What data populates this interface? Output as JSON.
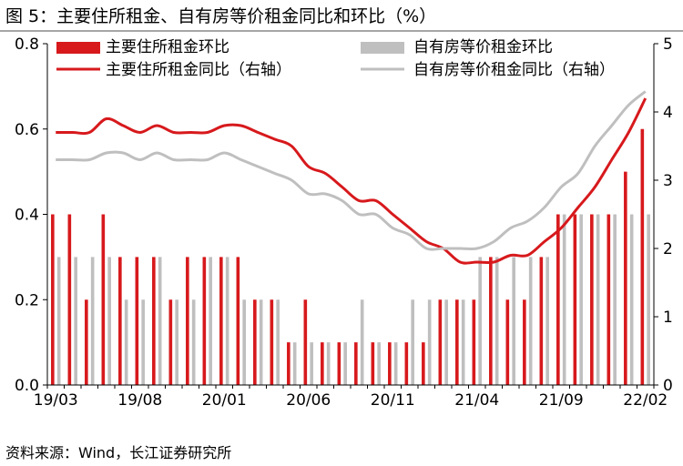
{
  "figure": {
    "title": "图 5：主要住所租金、自有房等价租金同比和环比（%）",
    "source": "资料来源：Wind，长江证券研究所"
  },
  "chart_data": {
    "type": "bar+line",
    "legend_position": "top",
    "grid": false,
    "x_tick_labels": [
      "19/03",
      "19/08",
      "20/01",
      "20/06",
      "20/11",
      "21/04",
      "21/09",
      "22/02"
    ],
    "x_months": [
      "2019-03",
      "2019-04",
      "2019-05",
      "2019-06",
      "2019-07",
      "2019-08",
      "2019-09",
      "2019-10",
      "2019-11",
      "2019-12",
      "2020-01",
      "2020-02",
      "2020-03",
      "2020-04",
      "2020-05",
      "2020-06",
      "2020-07",
      "2020-08",
      "2020-09",
      "2020-10",
      "2020-11",
      "2020-12",
      "2021-01",
      "2021-02",
      "2021-03",
      "2021-04",
      "2021-05",
      "2021-06",
      "2021-07",
      "2021-08",
      "2021-09",
      "2021-10",
      "2021-11",
      "2021-12",
      "2022-01",
      "2022-02"
    ],
    "y_left": {
      "min": 0,
      "max": 0.8,
      "ticks": [
        "0.0",
        "0.2",
        "0.4",
        "0.6",
        "0.8"
      ]
    },
    "y_right": {
      "min": 0,
      "max": 5,
      "ticks": [
        "0",
        "1",
        "2",
        "3",
        "4",
        "5"
      ]
    },
    "colors": {
      "primary": "#d7191c",
      "secondary": "#bfbfbf",
      "axis": "#000000"
    },
    "series": [
      {
        "name": "主要住所租金环比",
        "kind": "bar",
        "axis": "left",
        "color": "#d7191c",
        "values": [
          0.4,
          0.4,
          0.2,
          0.4,
          0.3,
          0.3,
          0.3,
          0.2,
          0.3,
          0.3,
          0.3,
          0.3,
          0.2,
          0.2,
          0.1,
          0.2,
          0.1,
          0.1,
          0.1,
          0.1,
          0.1,
          0.1,
          0.1,
          0.2,
          0.2,
          0.2,
          0.3,
          0.2,
          0.2,
          0.3,
          0.4,
          0.4,
          0.4,
          0.4,
          0.5,
          0.6
        ]
      },
      {
        "name": "自有房等价租金环比",
        "kind": "bar",
        "axis": "left",
        "color": "#bfbfbf",
        "values": [
          0.3,
          0.3,
          0.3,
          0.3,
          0.2,
          0.2,
          0.3,
          0.2,
          0.2,
          0.3,
          0.3,
          0.2,
          0.2,
          0.2,
          0.1,
          0.1,
          0.1,
          0.1,
          0.2,
          0.1,
          0.1,
          0.2,
          0.2,
          0.2,
          0.2,
          0.3,
          0.3,
          0.3,
          0.3,
          0.3,
          0.4,
          0.4,
          0.4,
          0.4,
          0.4,
          0.4
        ]
      },
      {
        "name": "主要住所租金同比（右轴）",
        "kind": "line",
        "axis": "right",
        "color": "#d7191c",
        "values": [
          3.7,
          3.7,
          3.7,
          3.9,
          3.8,
          3.7,
          3.8,
          3.7,
          3.7,
          3.7,
          3.8,
          3.8,
          3.7,
          3.6,
          3.5,
          3.2,
          3.1,
          2.9,
          2.7,
          2.7,
          2.5,
          2.3,
          2.1,
          2.0,
          1.8,
          1.8,
          1.8,
          1.9,
          1.9,
          2.1,
          2.3,
          2.6,
          2.9,
          3.3,
          3.7,
          4.2
        ]
      },
      {
        "name": "自有房等价租金同比（右轴）",
        "kind": "line",
        "axis": "right",
        "color": "#bfbfbf",
        "values": [
          3.3,
          3.3,
          3.3,
          3.4,
          3.4,
          3.3,
          3.4,
          3.3,
          3.3,
          3.3,
          3.4,
          3.3,
          3.2,
          3.1,
          3.0,
          2.8,
          2.8,
          2.7,
          2.5,
          2.5,
          2.3,
          2.2,
          2.0,
          2.0,
          2.0,
          2.0,
          2.1,
          2.3,
          2.4,
          2.6,
          2.9,
          3.1,
          3.5,
          3.8,
          4.1,
          4.3
        ]
      }
    ]
  }
}
